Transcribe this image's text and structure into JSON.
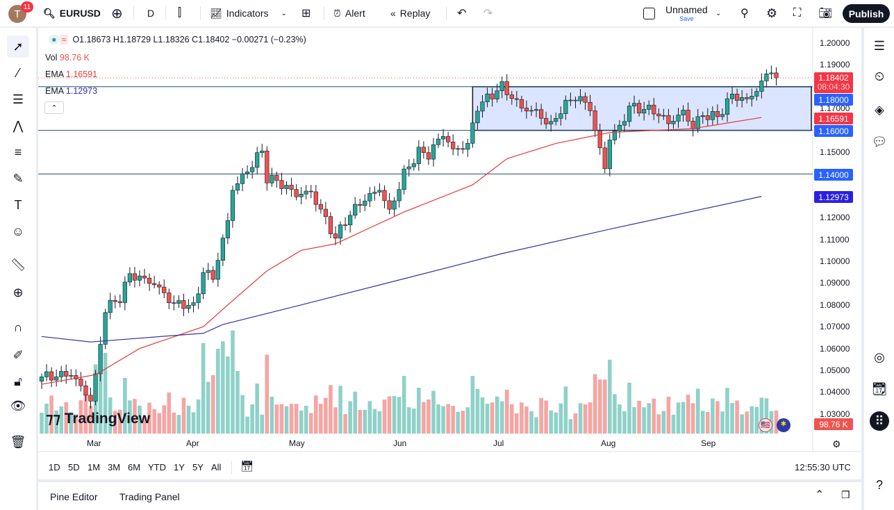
{
  "topbar": {
    "avatar_letter": "T",
    "notifications": "11",
    "symbol": "EURUSD",
    "interval": "D",
    "indicators": "Indicators",
    "alert": "Alert",
    "replay": "Replay",
    "layout_name": "Unnamed",
    "layout_status": "Save",
    "publish": "Publish"
  },
  "legend": {
    "ohlc": "O1.18673 H1.18729 L1.18326 C1.18402 −0.00271 (−0.23%)",
    "vol_label": "Vol",
    "vol_value": "98.76 K",
    "ema1_label": "EMA",
    "ema1_value": "1.16591",
    "ema2_label": "EMA",
    "ema2_value": "1.12973"
  },
  "price_axis": {
    "ticks": [
      "1.20000",
      "1.19000",
      "1.17000",
      "1.15000",
      "1.12000",
      "1.11000",
      "1.10000",
      "1.09000",
      "1.08000",
      "1.07000",
      "1.06000",
      "1.05000",
      "1.04000",
      "1.03000"
    ],
    "tags": {
      "last": "1.18402",
      "countdown": "08:04:30",
      "level_1": "1.18000",
      "ema1": "1.16591",
      "level_2": "1.16000",
      "level_3": "1.14000",
      "ema2": "1.12973",
      "volume": "98.76 K"
    }
  },
  "time_axis": {
    "labels": [
      "Mar",
      "Apr",
      "May",
      "Jun",
      "Jul",
      "Aug",
      "Sep"
    ],
    "clock": "12:55:30 UTC"
  },
  "ranges": [
    "1D",
    "5D",
    "1M",
    "3M",
    "6M",
    "YTD",
    "1Y",
    "5Y",
    "All"
  ],
  "bottom": {
    "pine_editor": "Pine Editor",
    "trading_panel": "Trading Panel"
  },
  "watermark": "TradingView",
  "colors": {
    "up": "#26a69a",
    "down": "#ef5350",
    "ema1": "#e53935",
    "ema2": "#3333a0",
    "level": "#2962ff",
    "rect_fill": "#d6e0ff"
  },
  "chart_data": {
    "type": "candlestick",
    "symbol": "EURUSD",
    "interval": "D",
    "close_keyframes": [
      [
        "2025-02-17",
        1.047
      ],
      [
        "2025-02-25",
        1.05
      ],
      [
        "2025-03-03",
        1.038
      ],
      [
        "2025-03-04",
        1.048
      ],
      [
        "2025-03-06",
        1.079
      ],
      [
        "2025-03-11",
        1.083
      ],
      [
        "2025-03-13",
        1.093
      ],
      [
        "2025-03-20",
        1.088
      ],
      [
        "2025-03-26",
        1.079
      ],
      [
        "2025-03-28",
        1.08
      ],
      [
        "2025-04-01",
        1.079
      ],
      [
        "2025-04-03",
        1.096
      ],
      [
        "2025-04-07",
        1.094
      ],
      [
        "2025-04-10",
        1.12
      ],
      [
        "2025-04-11",
        1.135
      ],
      [
        "2025-04-15",
        1.14
      ],
      [
        "2025-04-21",
        1.151
      ],
      [
        "2025-04-22",
        1.138
      ],
      [
        "2025-04-24",
        1.136
      ],
      [
        "2025-04-30",
        1.129
      ],
      [
        "2025-05-05",
        1.13
      ],
      [
        "2025-05-08",
        1.118
      ],
      [
        "2025-05-12",
        1.11
      ],
      [
        "2025-05-14",
        1.119
      ],
      [
        "2025-05-19",
        1.128
      ],
      [
        "2025-05-23",
        1.135
      ],
      [
        "2025-05-27",
        1.124
      ],
      [
        "2025-05-30",
        1.141
      ],
      [
        "2025-06-04",
        1.15
      ],
      [
        "2025-06-06",
        1.148
      ],
      [
        "2025-06-11",
        1.157
      ],
      [
        "2025-06-13",
        1.149
      ],
      [
        "2025-06-18",
        1.152
      ],
      [
        "2025-06-20",
        1.17
      ],
      [
        "2025-06-27",
        1.181
      ],
      [
        "2025-07-03",
        1.172
      ],
      [
        "2025-07-08",
        1.17
      ],
      [
        "2025-07-11",
        1.163
      ],
      [
        "2025-07-15",
        1.17
      ],
      [
        "2025-07-18",
        1.175
      ],
      [
        "2025-07-23",
        1.169
      ],
      [
        "2025-07-24",
        1.158
      ],
      [
        "2025-07-28",
        1.141
      ],
      [
        "2025-07-29",
        1.155
      ],
      [
        "2025-07-31",
        1.16
      ],
      [
        "2025-08-04",
        1.17
      ],
      [
        "2025-08-11",
        1.17
      ],
      [
        "2025-08-14",
        1.165
      ],
      [
        "2025-08-19",
        1.17
      ],
      [
        "2025-08-21",
        1.163
      ],
      [
        "2025-08-25",
        1.168
      ],
      [
        "2025-08-28",
        1.166
      ],
      [
        "2025-09-02",
        1.175
      ],
      [
        "2025-09-05",
        1.172
      ],
      [
        "2025-09-09",
        1.177
      ],
      [
        "2025-09-12",
        1.187
      ],
      [
        "2025-09-15",
        1.184
      ]
    ],
    "ema_short": [
      [
        0,
        1.0436
      ],
      [
        11,
        1.048
      ],
      [
        20,
        1.06
      ],
      [
        33,
        1.07
      ],
      [
        38,
        1.08
      ],
      [
        46,
        1.0956
      ],
      [
        53,
        1.105
      ],
      [
        60,
        1.108
      ],
      [
        74,
        1.1226
      ],
      [
        88,
        1.135
      ],
      [
        95,
        1.147
      ],
      [
        105,
        1.154
      ],
      [
        116,
        1.159
      ],
      [
        133,
        1.1608
      ],
      [
        147,
        1.16591
      ]
    ],
    "ema_long": [
      [
        0,
        1.0655
      ],
      [
        10,
        1.063
      ],
      [
        33,
        1.067
      ],
      [
        37,
        1.071
      ],
      [
        53,
        1.08
      ],
      [
        74,
        1.092
      ],
      [
        94,
        1.1035
      ],
      [
        116,
        1.1147
      ],
      [
        147,
        1.12973
      ]
    ],
    "horizontal_levels": [
      1.18,
      1.16,
      1.14
    ],
    "range_box": {
      "from": "2025-06-19",
      "to": "2025-09-24",
      "top": 1.18,
      "bottom": 1.16
    },
    "ylim": [
      1.025,
      1.205
    ]
  }
}
